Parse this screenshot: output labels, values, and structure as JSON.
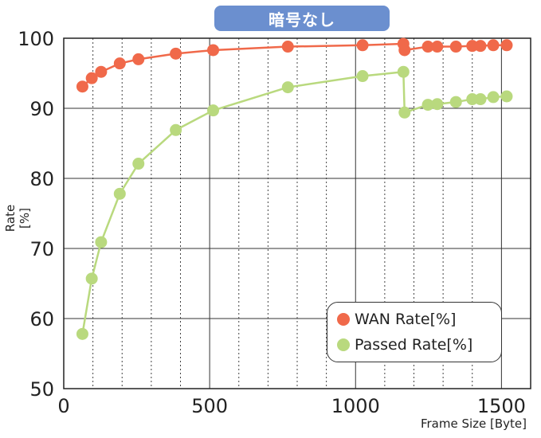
{
  "chart_data": {
    "type": "line",
    "title": "暗号なし",
    "xlabel": "Frame Size [Byte]",
    "ylabel": "Rate [%]",
    "xlim": [
      0,
      1600
    ],
    "ylim": [
      50,
      100
    ],
    "x_ticks": [
      0,
      500,
      1000,
      1500
    ],
    "y_ticks": [
      50,
      60,
      70,
      80,
      90,
      100
    ],
    "legend_position": "bottom-right",
    "grid": true,
    "series": [
      {
        "name": "WAN Rate[%]",
        "color": "#f0694a",
        "points": [
          [
            64,
            93.1
          ],
          [
            96,
            94.3
          ],
          [
            128,
            95.2
          ],
          [
            192,
            96.4
          ],
          [
            256,
            97.0
          ],
          [
            384,
            97.8
          ],
          [
            512,
            98.3
          ],
          [
            768,
            98.8
          ],
          [
            1024,
            99.0
          ],
          [
            1164,
            99.2
          ],
          [
            1168,
            98.3
          ],
          [
            1248,
            98.8
          ],
          [
            1280,
            98.8
          ],
          [
            1344,
            98.8
          ],
          [
            1400,
            98.9
          ],
          [
            1428,
            98.9
          ],
          [
            1472,
            99.0
          ],
          [
            1518,
            99.0
          ]
        ]
      },
      {
        "name": "Passed Rate[%]",
        "color": "#b9d97e",
        "points": [
          [
            64,
            57.8
          ],
          [
            96,
            65.7
          ],
          [
            128,
            70.9
          ],
          [
            192,
            77.8
          ],
          [
            256,
            82.1
          ],
          [
            384,
            86.9
          ],
          [
            512,
            89.7
          ],
          [
            768,
            93.0
          ],
          [
            1024,
            94.6
          ],
          [
            1164,
            95.2
          ],
          [
            1168,
            89.4
          ],
          [
            1248,
            90.5
          ],
          [
            1280,
            90.6
          ],
          [
            1344,
            90.9
          ],
          [
            1400,
            91.3
          ],
          [
            1428,
            91.3
          ],
          [
            1472,
            91.6
          ],
          [
            1518,
            91.7
          ]
        ]
      }
    ]
  }
}
